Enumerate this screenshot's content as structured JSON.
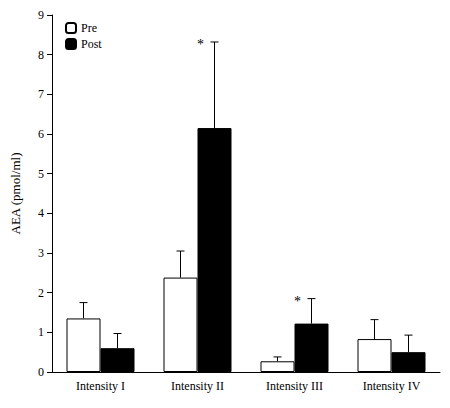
{
  "chart_data": {
    "type": "bar",
    "categories": [
      "Intensity I",
      "Intensity II",
      "Intensity III",
      "Intensity IV"
    ],
    "series": [
      {
        "name": "Pre",
        "color": "#ffffff",
        "values": [
          1.35,
          2.38,
          0.27,
          0.83
        ],
        "errors": [
          0.4,
          0.67,
          0.11,
          0.49
        ]
      },
      {
        "name": "Post",
        "color": "#000000",
        "values": [
          0.6,
          6.15,
          1.22,
          0.5
        ],
        "errors": [
          0.37,
          2.17,
          0.63,
          0.43
        ]
      }
    ],
    "y_label": "AEA (pmol/ml)",
    "ylim": [
      0,
      9
    ],
    "yticks": [
      0,
      1,
      2,
      3,
      4,
      5,
      6,
      7,
      8,
      9
    ],
    "grid": false,
    "legend": "upper left",
    "annotations": [
      {
        "text": "*",
        "category": "Intensity II",
        "series": "Post"
      },
      {
        "text": "*",
        "category": "Intensity III",
        "series": "Post"
      }
    ]
  }
}
